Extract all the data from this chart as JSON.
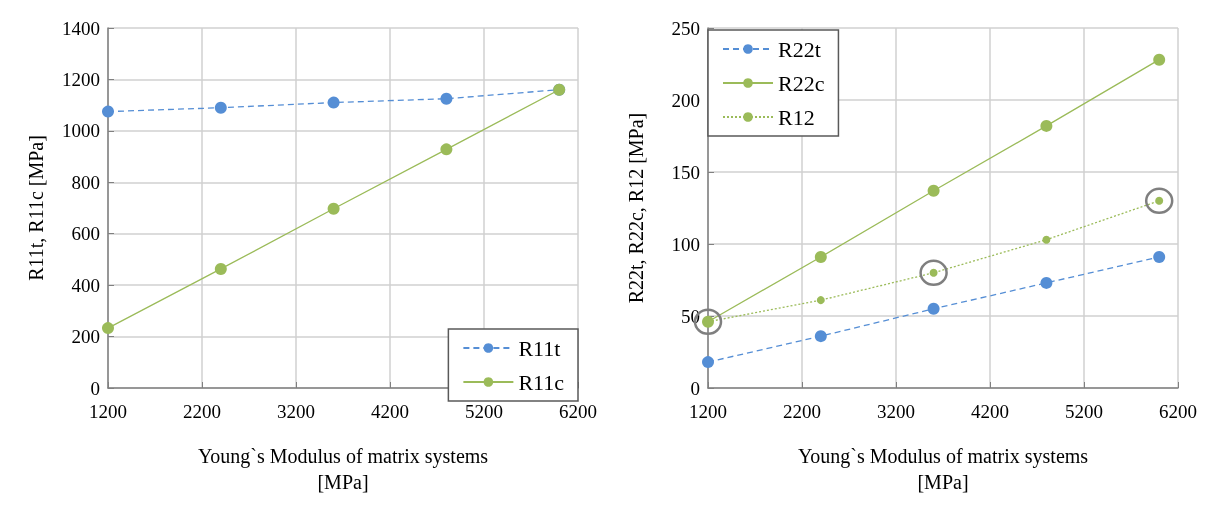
{
  "chart_data": [
    {
      "type": "line",
      "xlabel": "Young`s Modulus of matrix systems\n[MPa]",
      "ylabel": "R11t, R11c [MPa]",
      "x": [
        1200,
        2400,
        3600,
        4800,
        6000
      ],
      "xlim": [
        1200,
        6200
      ],
      "xticks": [
        1200,
        2200,
        3200,
        4200,
        5200,
        6200
      ],
      "ylim": [
        0,
        1400
      ],
      "yticks": [
        0,
        200,
        400,
        600,
        800,
        1000,
        1200,
        1400
      ],
      "grid": true,
      "legend": "bottom right",
      "marker": "circle",
      "series": [
        {
          "name": "R11t",
          "color": "#558ed5",
          "line_style": "dashed",
          "values": [
            1075,
            1090,
            1110,
            1125,
            1160
          ]
        },
        {
          "name": "R11c",
          "color": "#9bbb59",
          "line_style": "solid",
          "values": [
            233,
            463,
            697,
            928,
            1160
          ]
        }
      ]
    },
    {
      "type": "line",
      "xlabel": "Young`s Modulus of matrix systems\n[MPa]",
      "ylabel": "R22t, R22c, R12 [MPa]",
      "x": [
        1200,
        2400,
        3600,
        4800,
        6000
      ],
      "xlim": [
        1200,
        6200
      ],
      "xticks": [
        1200,
        2200,
        3200,
        4200,
        5200,
        6200
      ],
      "ylim": [
        0,
        250
      ],
      "yticks": [
        0,
        50,
        100,
        150,
        200,
        250
      ],
      "grid": true,
      "legend": "top left",
      "marker": "circle",
      "series": [
        {
          "name": "R22t",
          "color": "#558ed5",
          "line_style": "dashed",
          "values": [
            18,
            36,
            55,
            73,
            91
          ]
        },
        {
          "name": "R22c",
          "color": "#9bbb59",
          "line_style": "solid",
          "values": [
            46,
            91,
            137,
            182,
            228
          ]
        },
        {
          "name": "R12",
          "color": "#9bbb59",
          "line_style": "dotted",
          "values": [
            46,
            61,
            80,
            103,
            130
          ]
        }
      ]
    }
  ]
}
